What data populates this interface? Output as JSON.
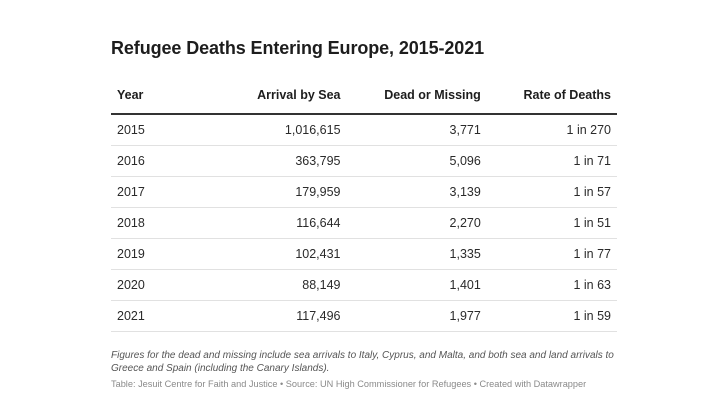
{
  "title": "Refugee Deaths Entering Europe, 2015-2021",
  "table": {
    "headers": [
      "Year",
      "Arrival by Sea",
      "Dead or Missing",
      "Rate of Deaths"
    ],
    "rows": [
      [
        "2015",
        "1,016,615",
        "3,771",
        "1 in 270"
      ],
      [
        "2016",
        "363,795",
        "5,096",
        "1 in 71"
      ],
      [
        "2017",
        "179,959",
        "3,139",
        "1 in 57"
      ],
      [
        "2018",
        "116,644",
        "2,270",
        "1 in 51"
      ],
      [
        "2019",
        "102,431",
        "1,335",
        "1 in 77"
      ],
      [
        "2020",
        "88,149",
        "1,401",
        "1 in 63"
      ],
      [
        "2021",
        "117,496",
        "1,977",
        "1 in 59"
      ]
    ]
  },
  "notes": "Figures for the dead and missing include sea arrivals to Italy, Cyprus, and Malta, and both sea and land arrivals to Greece and Spain (including the Canary Islands).",
  "source": "Table: Jesuit Centre for Faith and Justice • Source: UN High Commissioner for Refugees • Created with Datawrapper"
}
